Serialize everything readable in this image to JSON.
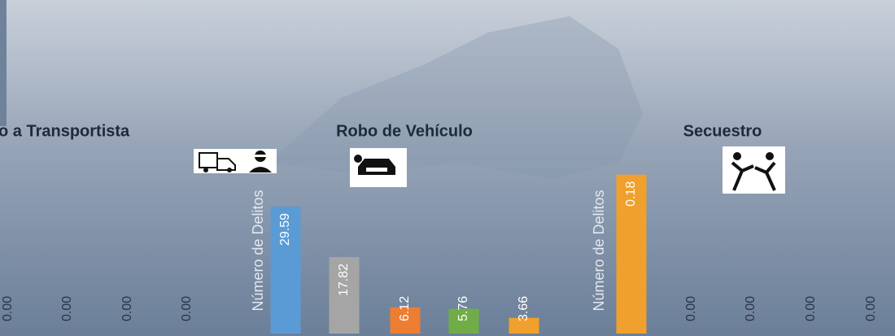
{
  "chart_data": [
    {
      "type": "bar",
      "title": "o a Transportista",
      "ylim": [
        0,
        1
      ],
      "values": [
        0,
        0,
        0,
        0
      ],
      "value_labels": [
        "0.00",
        "0.00",
        "0.00",
        "0.00"
      ],
      "colors": [
        "#5b9bd5",
        "#a5a5a5",
        "#ed7d31",
        "#70ad47"
      ]
    },
    {
      "type": "bar",
      "title": "Robo de Vehículo",
      "y_label": "Número de Delitos",
      "ylim": [
        0,
        40
      ],
      "values": [
        29.59,
        17.82,
        6.12,
        5.76,
        3.66
      ],
      "colors": [
        "#5b9bd5",
        "#a5a5a5",
        "#ed7d31",
        "#70ad47",
        "#f0a02c"
      ]
    },
    {
      "type": "bar",
      "title": "Secuestro",
      "y_label": "Número de Delitos",
      "ylim": [
        0,
        0.2
      ],
      "values": [
        0.18,
        0,
        0,
        0,
        0
      ],
      "value_labels": [
        "0.18",
        "0.00",
        "0.00",
        "0.00",
        "0.00"
      ],
      "colors": [
        "#f0a02c",
        "#5b9bd5",
        "#a5a5a5",
        "#ed7d31",
        "#70ad47"
      ]
    }
  ]
}
